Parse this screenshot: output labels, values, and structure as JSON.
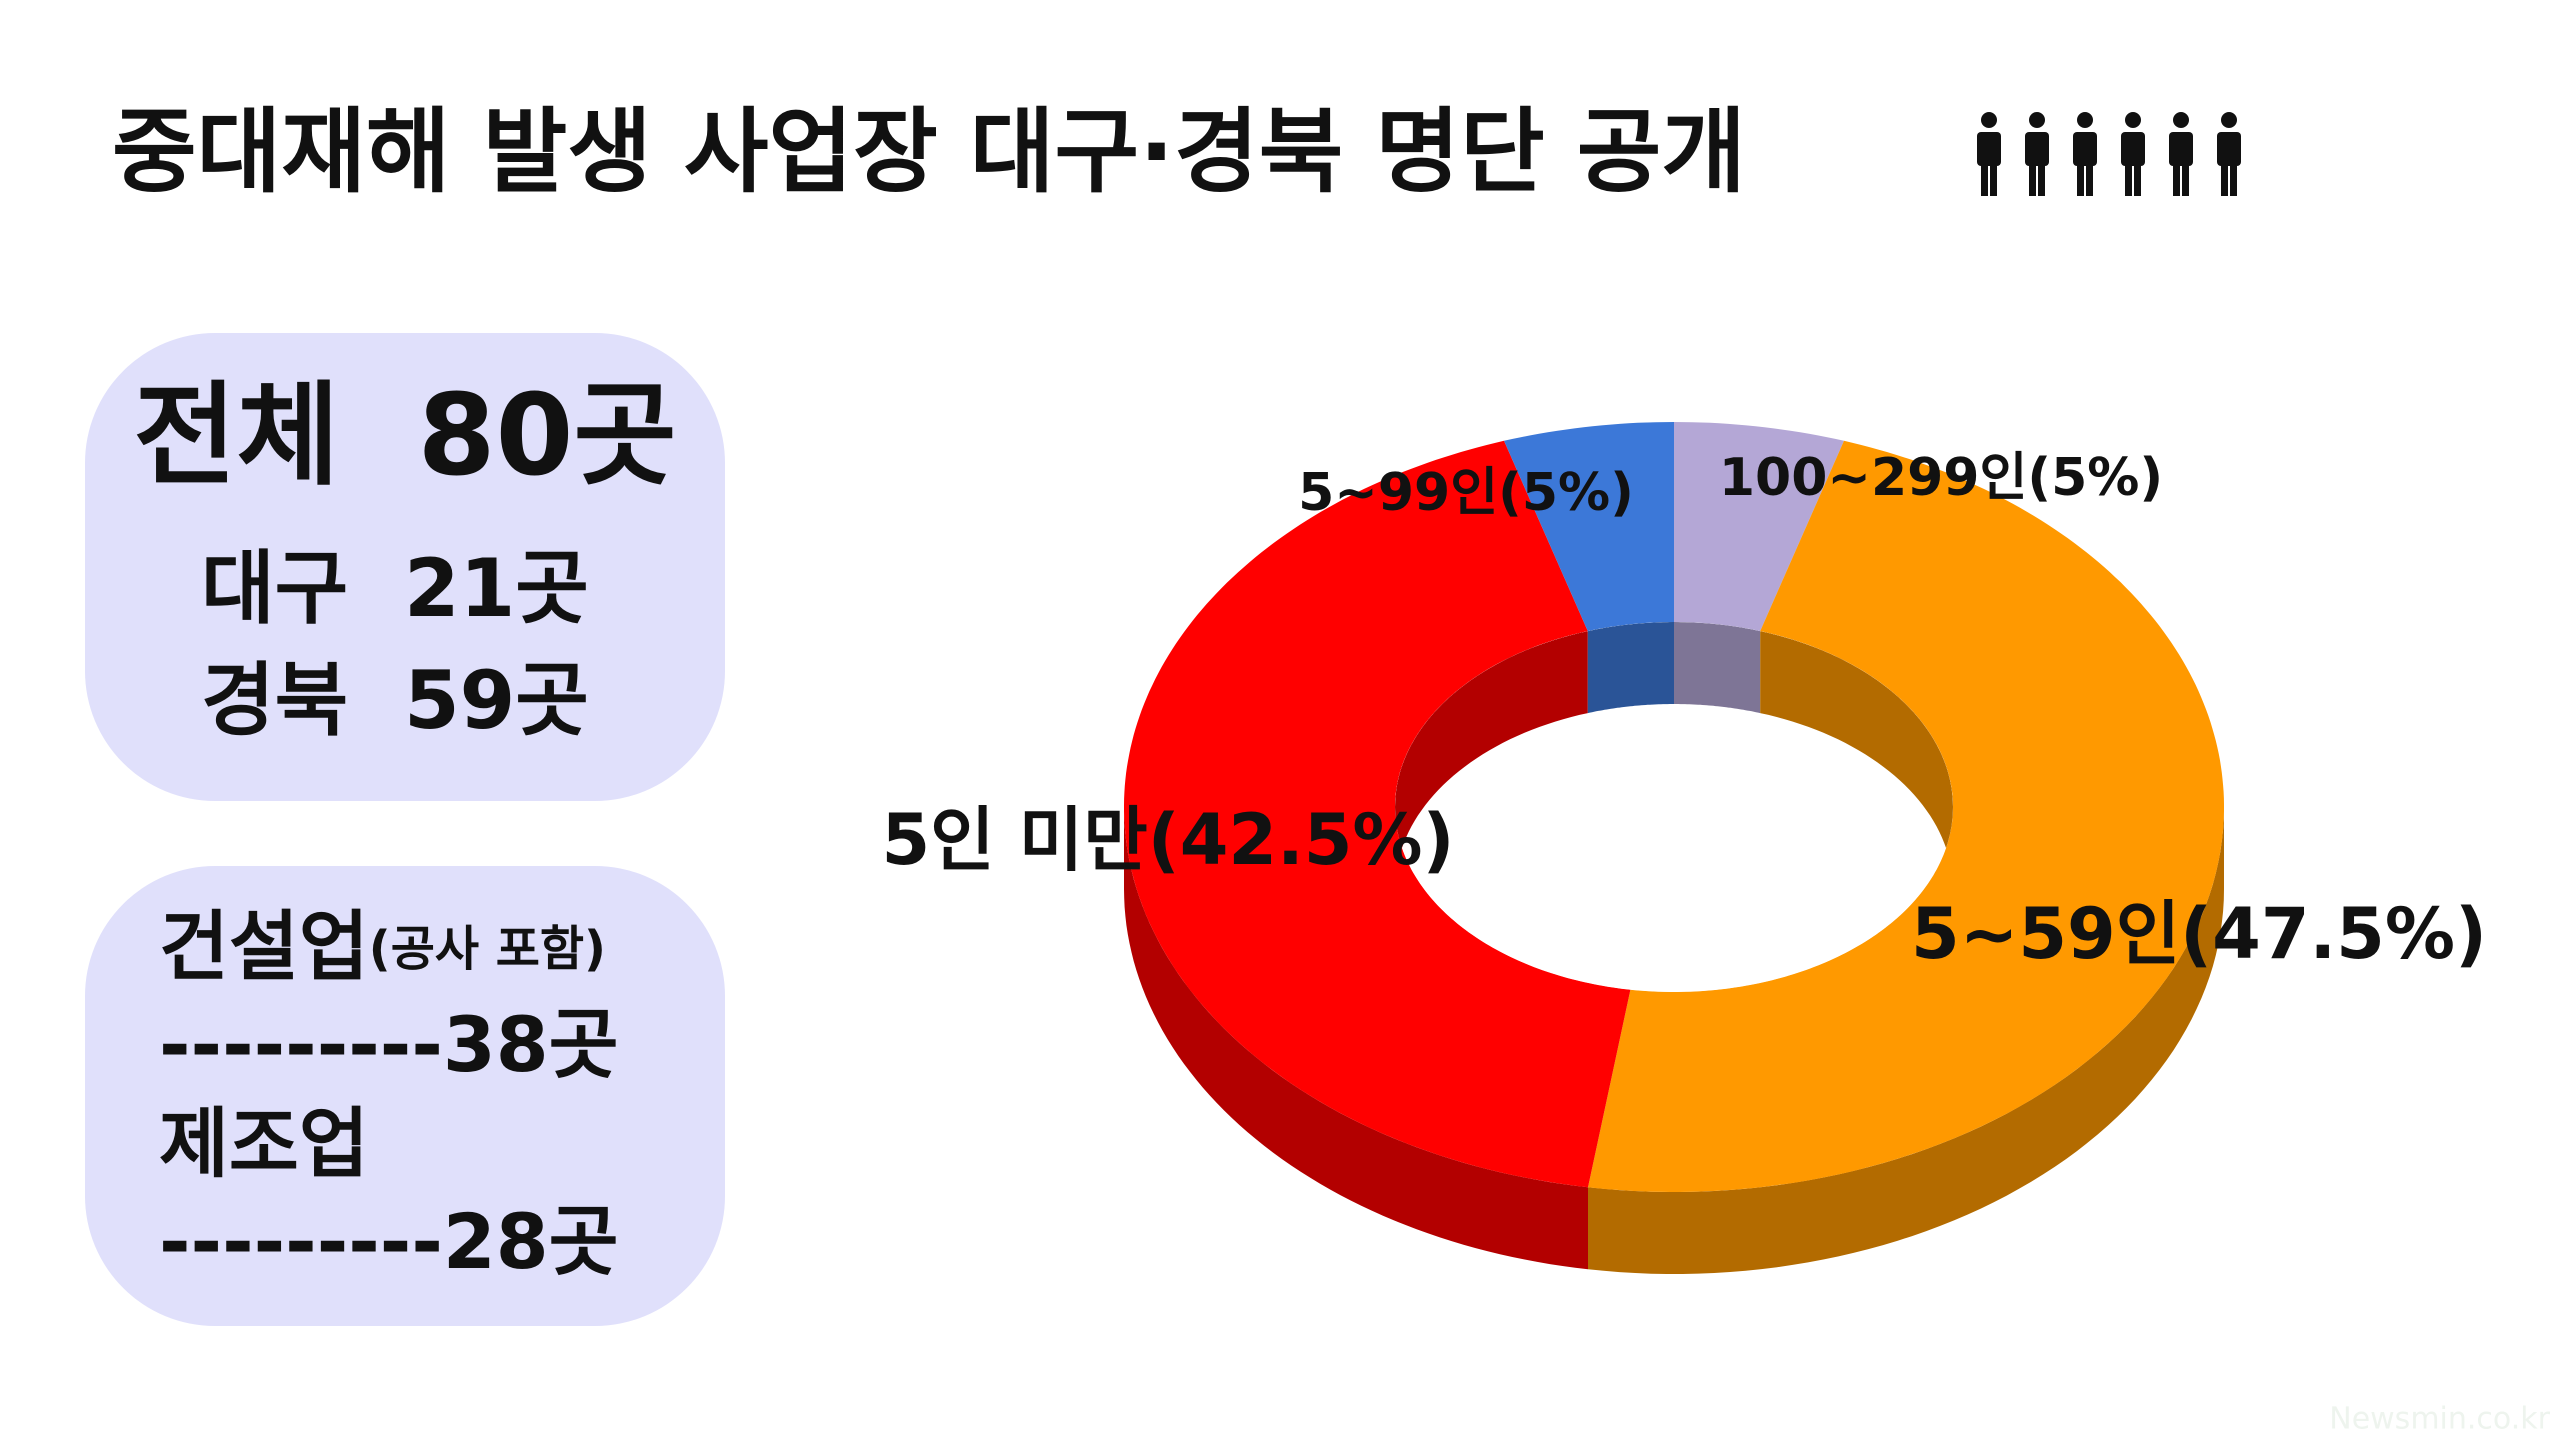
{
  "header": {
    "title": "중대재해 발생 사업장 대구·경북 명단 공개"
  },
  "summary": {
    "total": "전체  80곳",
    "lines": [
      "대구  21곳",
      "경북  59곳"
    ]
  },
  "industry": {
    "items": [
      {
        "name": "건설업",
        "note": "(공사 포함)",
        "count": "---------38곳"
      },
      {
        "name": "제조업",
        "count": "---------28곳"
      }
    ]
  },
  "watermark": "Newsmin.co.kr",
  "chart_data": {
    "type": "pie",
    "donut": true,
    "values": [
      5,
      47.5,
      42.5,
      5
    ],
    "value_labels": [
      "100~299인(5%)",
      "5~59인(47.5%)",
      "5인 미만(42.5%)",
      "5~99인(5%)"
    ],
    "colors": [
      "#b4a7d6",
      "#ff9900",
      "#ff0000",
      "#3c78d8"
    ]
  }
}
